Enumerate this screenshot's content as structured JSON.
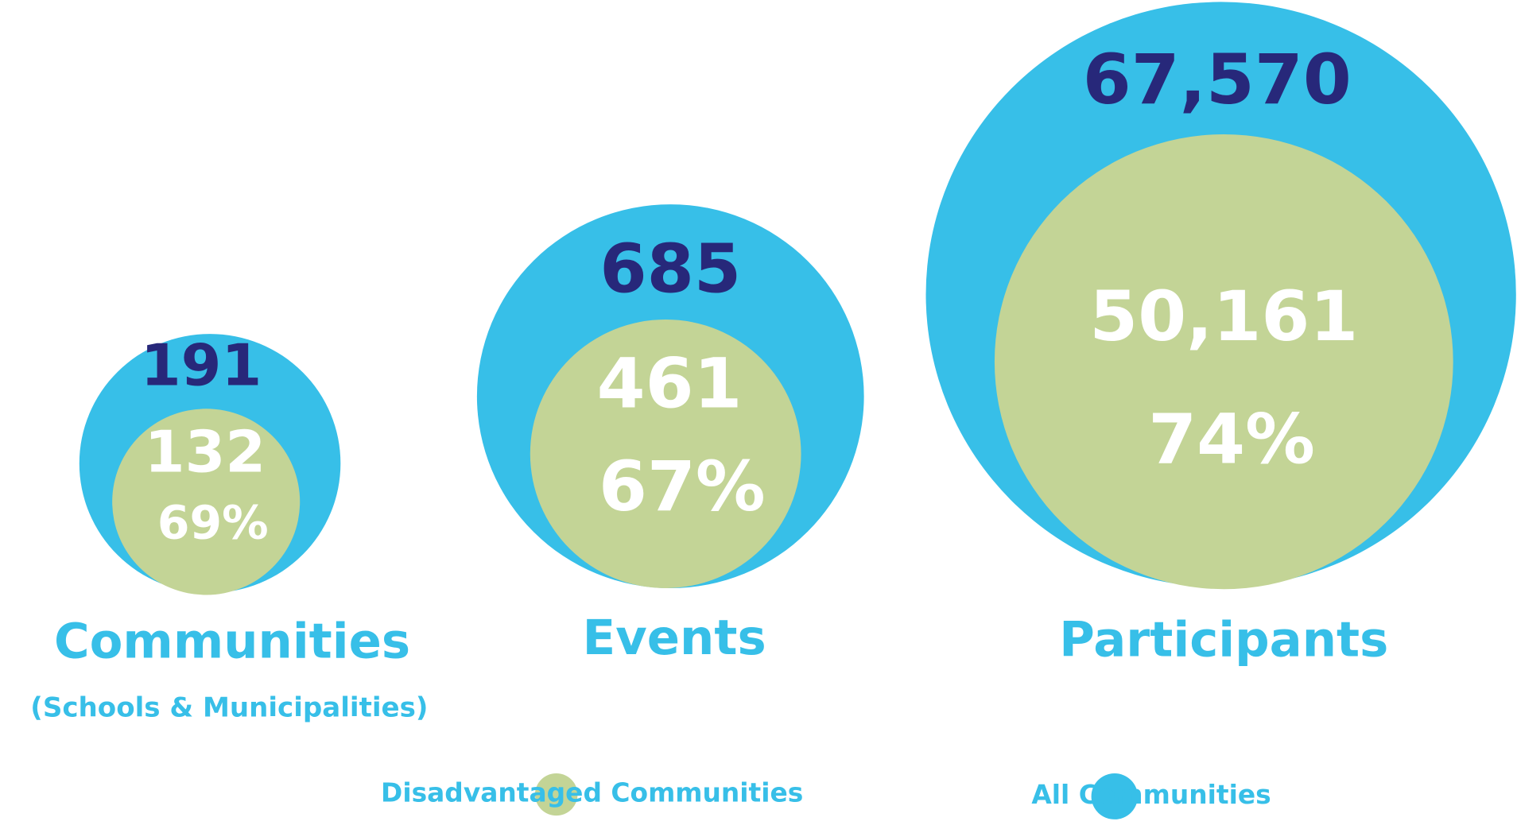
{
  "chart_data": {
    "type": "nested-bubble",
    "categories": [
      "Communities",
      "Events",
      "Participants"
    ],
    "subtitle": "(Schools & Municipalities)",
    "series": [
      {
        "name": "All Communities",
        "color": "#37bfe8",
        "values": [
          191,
          685,
          67570
        ],
        "value_labels": [
          "191",
          "685",
          "67,570"
        ]
      },
      {
        "name": "Disadvantaged Communities",
        "color": "#c3d496",
        "values": [
          132,
          461,
          50161
        ],
        "value_labels": [
          "132",
          "461",
          "50,161"
        ]
      }
    ],
    "share_percent": {
      "values": [
        69,
        67,
        74
      ],
      "value_labels": [
        "69%",
        "67%",
        "74%"
      ]
    }
  }
}
